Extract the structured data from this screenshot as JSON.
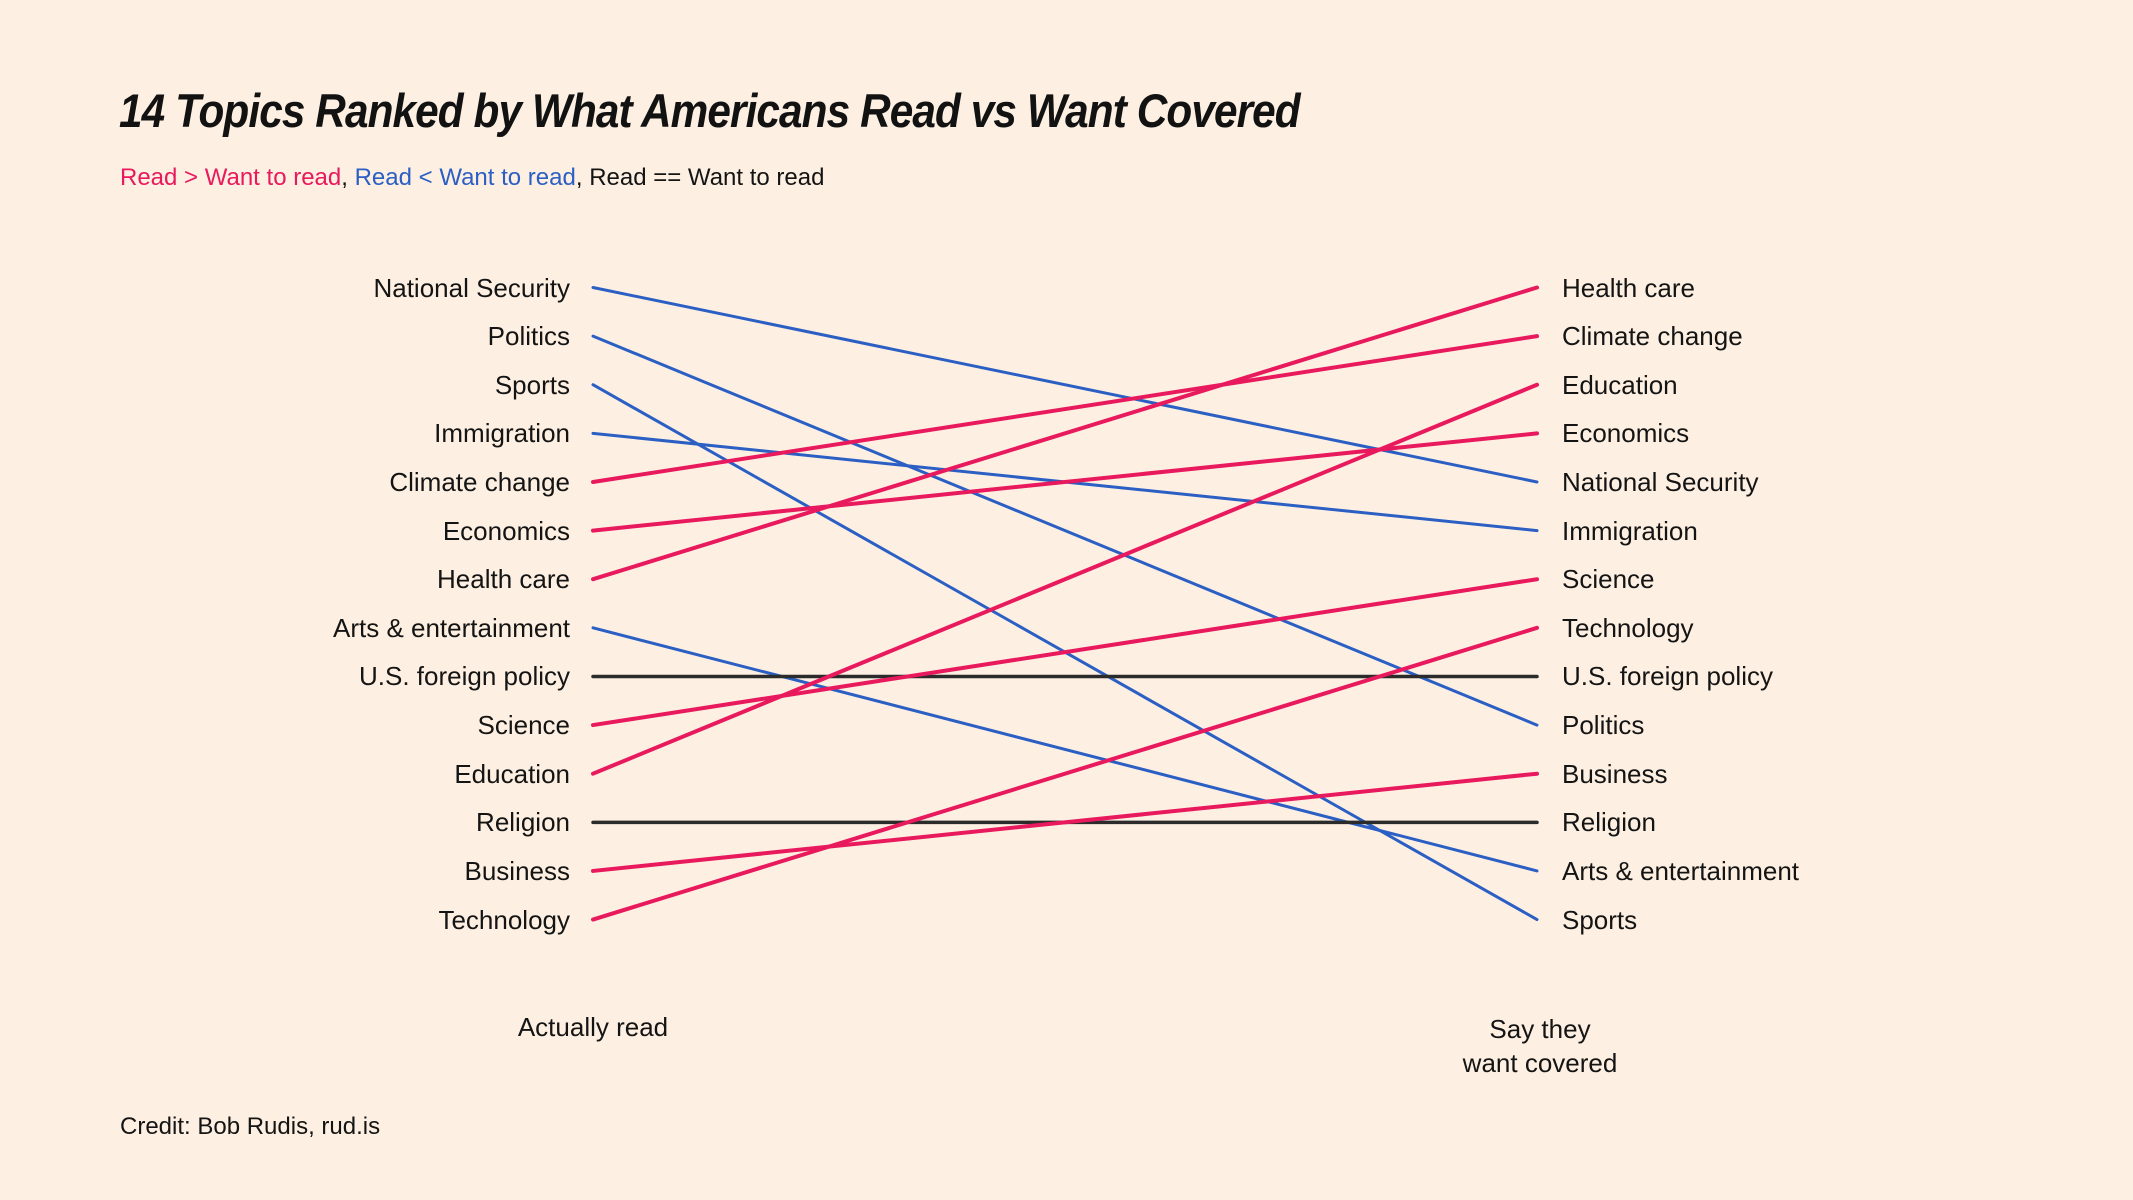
{
  "page": {
    "title": "14 Topics Ranked by What Americans Read vs Want Covered",
    "credit": "Credit: Bob Rudis, rud.is"
  },
  "legend": {
    "read_more_label": "Read > Want to read",
    "separator_1": ", ",
    "read_less_label": "Read < Want to read",
    "separator_2": ", ",
    "read_equal_label": "Read == Want to read"
  },
  "axis": {
    "left_title": "Actually read",
    "right_title_line1": "Say they",
    "right_title_line2": "want covered"
  },
  "colors": {
    "background": "#fdf0e2",
    "read_more_pink": "#e8195d",
    "read_less_blue": "#2b5fc4",
    "read_equal_black": "#2b2b2b",
    "text": "#141414"
  },
  "chart_data": {
    "type": "slope",
    "left_axis_title": "Actually read",
    "right_axis_title": "Say they want covered",
    "rank_range": [
      1,
      14
    ],
    "legend_note": "color encodes comparison of read rank vs want-covered rank",
    "left_order": [
      "National Security",
      "Politics",
      "Sports",
      "Immigration",
      "Climate change",
      "Economics",
      "Health care",
      "Arts & entertainment",
      "U.S. foreign policy",
      "Science",
      "Education",
      "Religion",
      "Business",
      "Technology"
    ],
    "right_order": [
      "Health care",
      "Climate change",
      "Education",
      "Economics",
      "National Security",
      "Immigration",
      "Science",
      "Technology",
      "U.S. foreign policy",
      "Politics",
      "Business",
      "Religion",
      "Arts & entertainment",
      "Sports"
    ],
    "topics": [
      {
        "name": "National Security",
        "read_rank": 1,
        "want_rank": 5,
        "relation": "read_less"
      },
      {
        "name": "Politics",
        "read_rank": 2,
        "want_rank": 10,
        "relation": "read_less"
      },
      {
        "name": "Sports",
        "read_rank": 3,
        "want_rank": 14,
        "relation": "read_less"
      },
      {
        "name": "Immigration",
        "read_rank": 4,
        "want_rank": 6,
        "relation": "read_less"
      },
      {
        "name": "Climate change",
        "read_rank": 5,
        "want_rank": 2,
        "relation": "read_more"
      },
      {
        "name": "Economics",
        "read_rank": 6,
        "want_rank": 4,
        "relation": "read_more"
      },
      {
        "name": "Health care",
        "read_rank": 7,
        "want_rank": 1,
        "relation": "read_more"
      },
      {
        "name": "Arts & entertainment",
        "read_rank": 8,
        "want_rank": 13,
        "relation": "read_less"
      },
      {
        "name": "U.S. foreign policy",
        "read_rank": 9,
        "want_rank": 9,
        "relation": "read_equal"
      },
      {
        "name": "Science",
        "read_rank": 10,
        "want_rank": 7,
        "relation": "read_more"
      },
      {
        "name": "Education",
        "read_rank": 11,
        "want_rank": 3,
        "relation": "read_more"
      },
      {
        "name": "Religion",
        "read_rank": 12,
        "want_rank": 12,
        "relation": "read_equal"
      },
      {
        "name": "Business",
        "read_rank": 13,
        "want_rank": 11,
        "relation": "read_more"
      },
      {
        "name": "Technology",
        "read_rank": 14,
        "want_rank": 8,
        "relation": "read_more"
      }
    ]
  }
}
